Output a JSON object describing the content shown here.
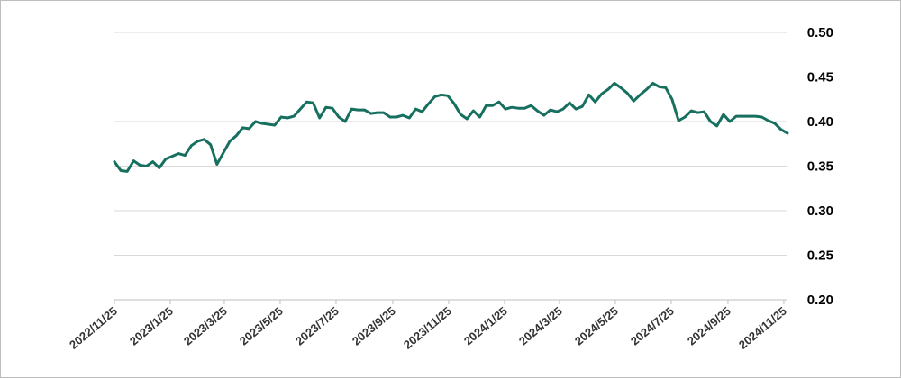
{
  "chart_data": {
    "type": "line",
    "title": "",
    "xlabel": "",
    "ylabel": "",
    "ylim": [
      0.2,
      0.5
    ],
    "y_ticks": [
      "0.20",
      "0.25",
      "0.30",
      "0.35",
      "0.40",
      "0.45",
      "0.50"
    ],
    "y_axis_side": "right",
    "grid": "horizontal",
    "legend": "none",
    "line_color": "#17705F",
    "x_tick_labels": [
      "2022/11/25",
      "2023/1/25",
      "2023/3/25",
      "2023/5/25",
      "2023/7/25",
      "2023/9/25",
      "2023/11/25",
      "2024/1/25",
      "2024/3/25",
      "2024/5/25",
      "2024/7/25",
      "2024/9/25",
      "2024/11/25"
    ],
    "series": [
      {
        "name": "",
        "x": [
          "2022/11/25",
          "2022/12/2",
          "2022/12/9",
          "2022/12/16",
          "2022/12/23",
          "2022/12/30",
          "2023/1/6",
          "2023/1/13",
          "2023/1/20",
          "2023/1/27",
          "2023/2/3",
          "2023/2/10",
          "2023/2/17",
          "2023/2/24",
          "2023/3/3",
          "2023/3/10",
          "2023/3/17",
          "2023/3/24",
          "2023/3/31",
          "2023/4/7",
          "2023/4/14",
          "2023/4/21",
          "2023/4/28",
          "2023/5/5",
          "2023/5/12",
          "2023/5/19",
          "2023/5/26",
          "2023/6/2",
          "2023/6/9",
          "2023/6/16",
          "2023/6/23",
          "2023/6/30",
          "2023/7/7",
          "2023/7/14",
          "2023/7/21",
          "2023/7/28",
          "2023/8/4",
          "2023/8/11",
          "2023/8/18",
          "2023/8/25",
          "2023/9/1",
          "2023/9/8",
          "2023/9/15",
          "2023/9/22",
          "2023/9/29",
          "2023/10/6",
          "2023/10/13",
          "2023/10/20",
          "2023/10/27",
          "2023/11/3",
          "2023/11/10",
          "2023/11/17",
          "2023/11/24",
          "2023/12/1",
          "2023/12/8",
          "2023/12/15",
          "2023/12/22",
          "2023/12/29",
          "2024/1/5",
          "2024/1/12",
          "2024/1/19",
          "2024/1/26",
          "2024/2/2",
          "2024/2/9",
          "2024/2/16",
          "2024/2/23",
          "2024/3/1",
          "2024/3/8",
          "2024/3/15",
          "2024/3/22",
          "2024/3/29",
          "2024/4/5",
          "2024/4/12",
          "2024/4/19",
          "2024/4/26",
          "2024/5/3",
          "2024/5/10",
          "2024/5/17",
          "2024/5/24",
          "2024/5/31",
          "2024/6/7",
          "2024/6/14",
          "2024/6/21",
          "2024/6/28",
          "2024/7/5",
          "2024/7/12",
          "2024/7/19",
          "2024/7/26",
          "2024/8/2",
          "2024/8/9",
          "2024/8/16",
          "2024/8/23",
          "2024/8/30",
          "2024/9/6",
          "2024/9/13",
          "2024/9/20",
          "2024/9/27",
          "2024/10/4",
          "2024/10/11",
          "2024/10/18",
          "2024/10/25",
          "2024/11/1",
          "2024/11/8",
          "2024/11/15",
          "2024/11/22",
          "2024/11/29"
        ],
        "values": [
          0.355,
          0.345,
          0.344,
          0.356,
          0.351,
          0.35,
          0.355,
          0.348,
          0.358,
          0.361,
          0.364,
          0.362,
          0.373,
          0.378,
          0.38,
          0.374,
          0.352,
          0.365,
          0.378,
          0.384,
          0.393,
          0.392,
          0.4,
          0.398,
          0.397,
          0.396,
          0.405,
          0.404,
          0.406,
          0.414,
          0.422,
          0.421,
          0.404,
          0.416,
          0.415,
          0.405,
          0.4,
          0.414,
          0.413,
          0.413,
          0.409,
          0.41,
          0.41,
          0.405,
          0.405,
          0.407,
          0.404,
          0.414,
          0.411,
          0.42,
          0.428,
          0.43,
          0.429,
          0.42,
          0.408,
          0.403,
          0.412,
          0.405,
          0.418,
          0.418,
          0.422,
          0.414,
          0.416,
          0.415,
          0.415,
          0.418,
          0.412,
          0.407,
          0.413,
          0.411,
          0.414,
          0.421,
          0.414,
          0.417,
          0.43,
          0.422,
          0.431,
          0.436,
          0.443,
          0.438,
          0.432,
          0.423,
          0.43,
          0.436,
          0.443,
          0.439,
          0.438,
          0.425,
          0.401,
          0.405,
          0.412,
          0.41,
          0.411,
          0.4,
          0.395,
          0.408,
          0.4,
          0.406,
          0.406,
          0.406,
          0.406,
          0.405,
          0.401,
          0.398,
          0.391,
          0.387
        ]
      }
    ]
  }
}
